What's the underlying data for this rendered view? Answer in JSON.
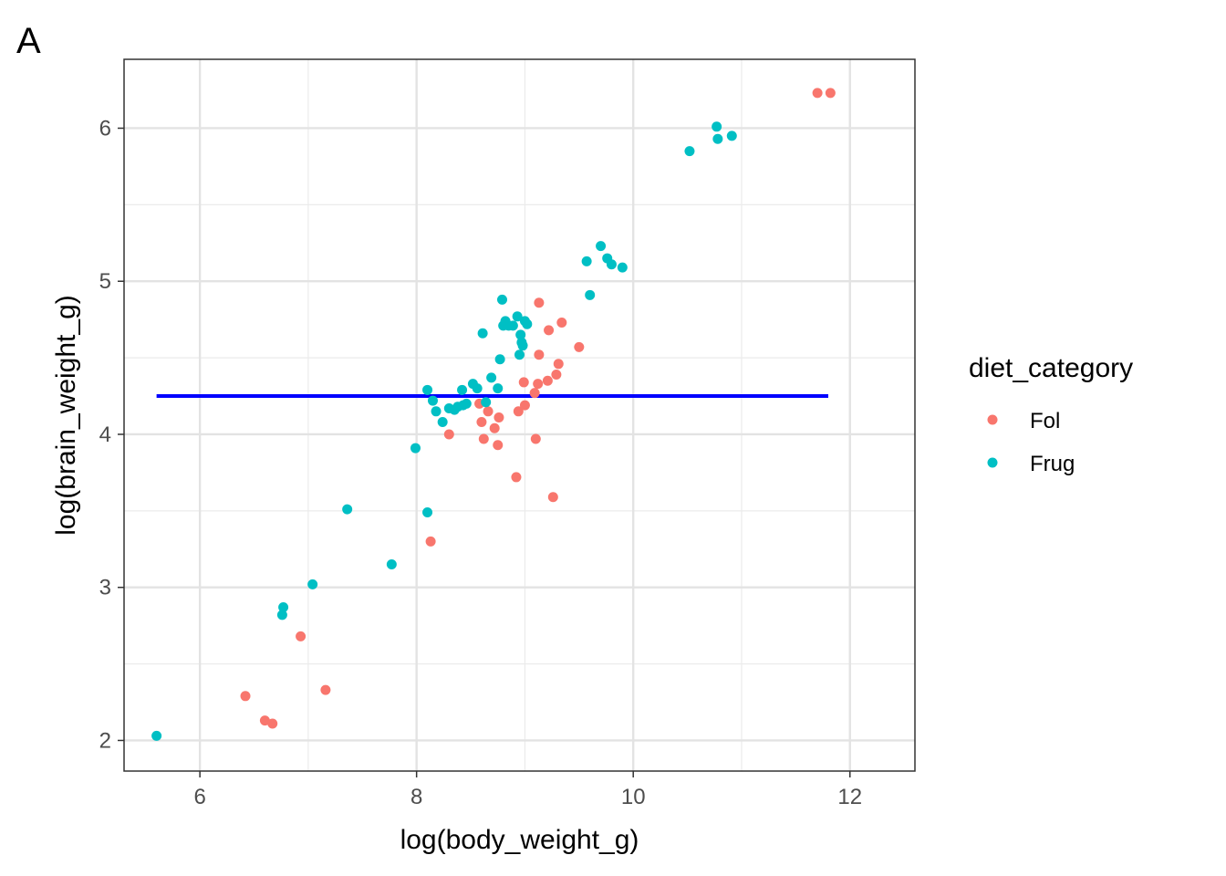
{
  "panel_label": "A",
  "colors": {
    "Fol": "#F8766D",
    "Frug": "#00BFC4",
    "hline": "#0000FF"
  },
  "chart_data": {
    "type": "scatter",
    "xlabel": "log(body_weight_g)",
    "ylabel": "log(brain_weight_g)",
    "xlim": [
      5.3,
      12.6
    ],
    "ylim": [
      1.8,
      6.45
    ],
    "x_ticks": [
      6,
      8,
      10,
      12
    ],
    "x_tick_labels": [
      "6",
      "8",
      "10",
      "12"
    ],
    "y_ticks": [
      2,
      3,
      4,
      5,
      6
    ],
    "y_tick_labels": [
      "2",
      "3",
      "4",
      "5",
      "6"
    ],
    "grid": true,
    "legend": {
      "title": "diet_category",
      "position": "right",
      "entries": [
        "Fol",
        "Frug"
      ]
    },
    "hline": {
      "y": 4.25,
      "x_from": 5.6,
      "x_to": 11.8
    },
    "series": [
      {
        "name": "Fol",
        "points": [
          [
            6.42,
            2.29
          ],
          [
            6.6,
            2.13
          ],
          [
            6.67,
            2.11
          ],
          [
            6.93,
            2.68
          ],
          [
            7.16,
            2.33
          ],
          [
            8.13,
            3.3
          ],
          [
            8.3,
            4.0
          ],
          [
            8.58,
            4.2
          ],
          [
            8.6,
            4.08
          ],
          [
            8.62,
            3.97
          ],
          [
            8.66,
            4.15
          ],
          [
            8.72,
            4.04
          ],
          [
            8.76,
            4.11
          ],
          [
            8.75,
            3.93
          ],
          [
            8.92,
            3.72
          ],
          [
            8.94,
            4.15
          ],
          [
            8.99,
            4.34
          ],
          [
            9.0,
            4.19
          ],
          [
            9.09,
            4.27
          ],
          [
            9.1,
            3.97
          ],
          [
            9.12,
            4.33
          ],
          [
            9.13,
            4.52
          ],
          [
            9.13,
            4.86
          ],
          [
            9.21,
            4.35
          ],
          [
            9.22,
            4.68
          ],
          [
            9.26,
            3.59
          ],
          [
            9.29,
            4.39
          ],
          [
            9.31,
            4.46
          ],
          [
            9.34,
            4.73
          ],
          [
            9.5,
            4.57
          ],
          [
            11.7,
            6.23
          ],
          [
            11.82,
            6.23
          ]
        ]
      },
      {
        "name": "Frug",
        "points": [
          [
            5.6,
            2.03
          ],
          [
            6.76,
            2.82
          ],
          [
            6.77,
            2.87
          ],
          [
            7.04,
            3.02
          ],
          [
            7.36,
            3.51
          ],
          [
            7.77,
            3.15
          ],
          [
            7.99,
            3.91
          ],
          [
            8.1,
            3.49
          ],
          [
            8.1,
            4.29
          ],
          [
            8.15,
            4.22
          ],
          [
            8.18,
            4.15
          ],
          [
            8.24,
            4.08
          ],
          [
            8.3,
            4.17
          ],
          [
            8.35,
            4.16
          ],
          [
            8.38,
            4.18
          ],
          [
            8.42,
            4.29
          ],
          [
            8.43,
            4.19
          ],
          [
            8.46,
            4.2
          ],
          [
            8.52,
            4.33
          ],
          [
            8.56,
            4.3
          ],
          [
            8.61,
            4.66
          ],
          [
            8.64,
            4.21
          ],
          [
            8.69,
            4.37
          ],
          [
            8.75,
            4.3
          ],
          [
            8.77,
            4.49
          ],
          [
            8.79,
            4.88
          ],
          [
            8.8,
            4.71
          ],
          [
            8.82,
            4.74
          ],
          [
            8.85,
            4.71
          ],
          [
            8.89,
            4.71
          ],
          [
            8.93,
            4.77
          ],
          [
            8.95,
            4.52
          ],
          [
            8.96,
            4.65
          ],
          [
            8.97,
            4.6
          ],
          [
            8.98,
            4.58
          ],
          [
            9.0,
            4.74
          ],
          [
            9.02,
            4.72
          ],
          [
            9.57,
            5.13
          ],
          [
            9.6,
            4.91
          ],
          [
            9.7,
            5.23
          ],
          [
            9.76,
            5.15
          ],
          [
            9.8,
            5.11
          ],
          [
            9.9,
            5.09
          ],
          [
            10.52,
            5.85
          ],
          [
            10.77,
            6.01
          ],
          [
            10.78,
            5.93
          ],
          [
            10.91,
            5.95
          ]
        ]
      }
    ]
  }
}
